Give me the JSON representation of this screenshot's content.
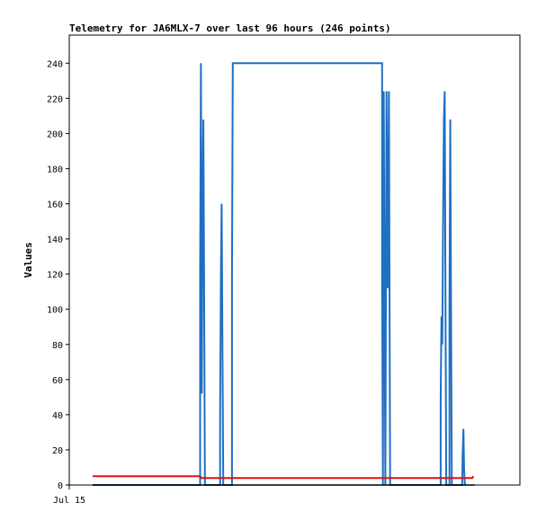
{
  "chart_data": {
    "type": "line",
    "title": "Telemetry for JA6MLX-7 over last 96 hours (246 points)",
    "ylabel": "Values",
    "xlabel": "",
    "x_ticks": [
      "Jul 15"
    ],
    "y_ticks": [
      0,
      20,
      40,
      60,
      80,
      100,
      120,
      140,
      160,
      180,
      200,
      220,
      240
    ],
    "ylim": [
      0,
      256
    ],
    "xlim": [
      0,
      96
    ],
    "grid": false,
    "legend": "none",
    "series": [
      {
        "color": "#1f6fc2",
        "points": [
          [
            0,
            0
          ],
          [
            27.0,
            0
          ],
          [
            27.0,
            120
          ],
          [
            27.2,
            240
          ],
          [
            27.4,
            52
          ],
          [
            27.6,
            156
          ],
          [
            27.8,
            208
          ],
          [
            28.0,
            104
          ],
          [
            28.2,
            0
          ],
          [
            32.0,
            0
          ],
          [
            32.0,
            40
          ],
          [
            32.2,
            120
          ],
          [
            32.4,
            160
          ],
          [
            32.6,
            80
          ],
          [
            32.8,
            0
          ],
          [
            35.0,
            0
          ],
          [
            35.0,
            120
          ],
          [
            35.2,
            240
          ],
          [
            72.7,
            240
          ],
          [
            72.7,
            120
          ],
          [
            72.9,
            0
          ],
          [
            73.1,
            224
          ],
          [
            73.3,
            112
          ],
          [
            73.5,
            0
          ],
          [
            73.8,
            224
          ],
          [
            74.1,
            112
          ],
          [
            74.4,
            224
          ],
          [
            74.7,
            0
          ],
          [
            87.4,
            0
          ],
          [
            87.4,
            48
          ],
          [
            87.6,
            96
          ],
          [
            87.8,
            80
          ],
          [
            88.0,
            152
          ],
          [
            88.2,
            208
          ],
          [
            88.4,
            224
          ],
          [
            88.6,
            112
          ],
          [
            88.8,
            0
          ],
          [
            89.6,
            0
          ],
          [
            89.6,
            104
          ],
          [
            89.8,
            208
          ],
          [
            90.0,
            104
          ],
          [
            90.2,
            0
          ],
          [
            92.8,
            0
          ],
          [
            92.9,
            16
          ],
          [
            93.1,
            32
          ],
          [
            93.3,
            8
          ],
          [
            93.5,
            0
          ]
        ]
      },
      {
        "color": "#e01010",
        "points": [
          [
            0,
            5
          ],
          [
            27.0,
            5
          ],
          [
            27.3,
            4
          ],
          [
            95.4,
            4
          ],
          [
            95.6,
            5
          ]
        ]
      },
      {
        "color": "#000000",
        "points": [
          [
            0,
            0
          ],
          [
            96,
            0
          ]
        ]
      }
    ]
  }
}
